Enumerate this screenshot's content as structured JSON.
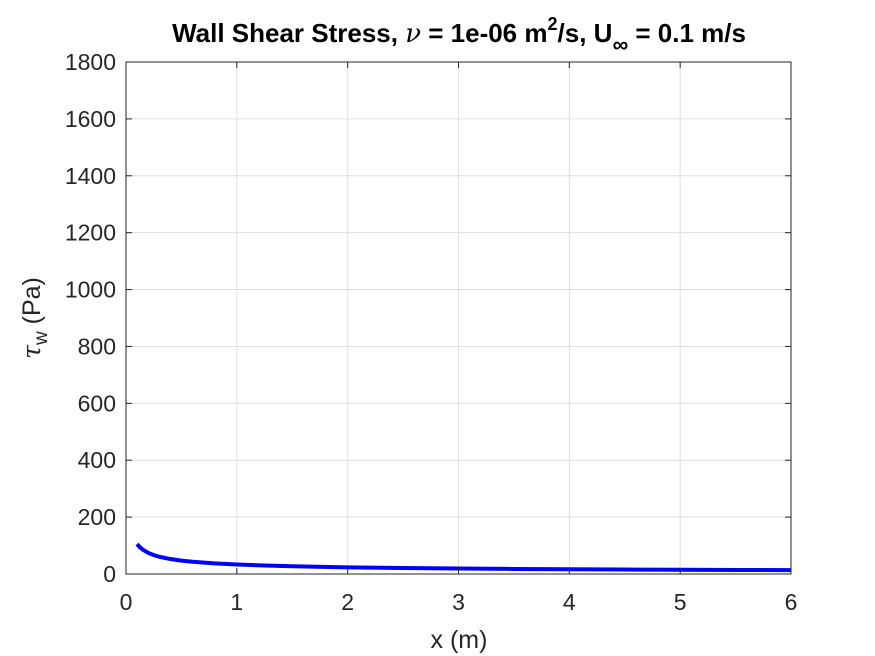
{
  "chart_data": {
    "type": "line",
    "title": {
      "prefix": "Wall Shear Stress, ",
      "nu_symbol": "ν",
      "nu_text": " = 1e-06 m",
      "nu_unit_sup": "2",
      "nu_unit_rest": "/s, U",
      "u_sub": "∞",
      "u_text": " = 0.1 m/s"
    },
    "xlabel": "x (m)",
    "ylabel": {
      "symbol": "τ",
      "sub": "w",
      "unit": " (Pa)"
    },
    "xlim": [
      0,
      6
    ],
    "ylim": [
      0,
      1800
    ],
    "xticks": [
      0,
      1,
      2,
      3,
      4,
      5,
      6
    ],
    "xtick_labels": [
      "0",
      "1",
      "2",
      "3",
      "4",
      "5",
      "6"
    ],
    "yticks": [
      0,
      200,
      400,
      600,
      800,
      1000,
      1200,
      1400,
      1600,
      1800
    ],
    "ytick_labels": [
      "0",
      "200",
      "400",
      "600",
      "800",
      "1000",
      "1200",
      "1400",
      "1600",
      "1800"
    ],
    "grid": true,
    "series": [
      {
        "color": "#0000ff",
        "x": [
          0.1,
          0.12,
          0.15,
          0.2,
          0.25,
          0.3,
          0.4,
          0.5,
          0.6,
          0.8,
          1.0,
          1.25,
          1.5,
          2.0,
          2.5,
          3.0,
          3.5,
          4.0,
          4.5,
          5.0,
          5.5,
          6.0
        ],
        "y": [
          105.2,
          96.0,
          85.9,
          74.4,
          66.5,
          60.7,
          52.6,
          47.0,
          42.9,
          37.2,
          33.3,
          29.8,
          27.2,
          23.5,
          21.0,
          19.2,
          17.8,
          16.6,
          15.7,
          14.9,
          14.2,
          13.6
        ]
      }
    ]
  }
}
